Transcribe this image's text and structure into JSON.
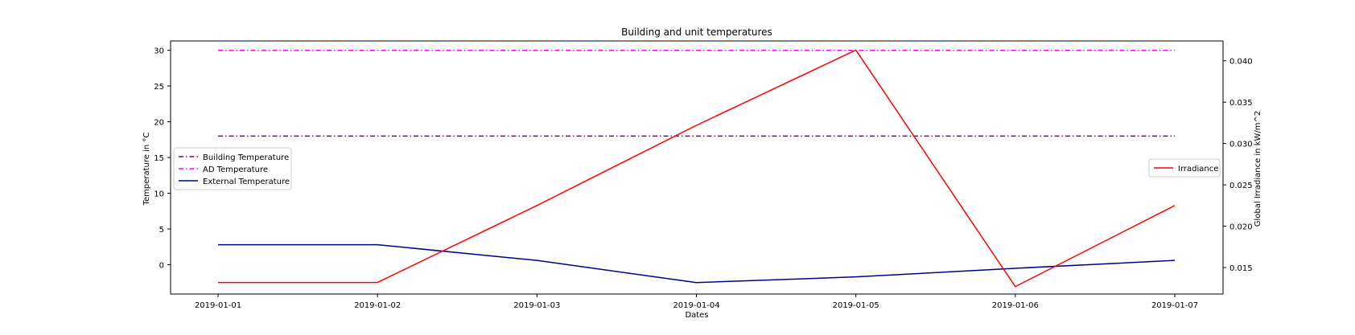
{
  "chart_data": {
    "type": "line",
    "title": "Building and unit temperatures",
    "xlabel": "Dates",
    "ylabel": "Temperature in °C",
    "ylabel_right": "Global Irradiance in kW/m^2",
    "x": [
      "2019-01-01",
      "2019-01-02",
      "2019-01-03",
      "2019-01-04",
      "2019-01-05",
      "2019-01-06",
      "2019-01-07"
    ],
    "xlim": [
      "2019-01-01",
      "2019-01-07"
    ],
    "ylim": [
      -4.1,
      31.3
    ],
    "ylim_right": [
      0.0118,
      0.0424
    ],
    "yticks": [
      0,
      5,
      10,
      15,
      20,
      25,
      30
    ],
    "yticks_right": [
      0.015,
      0.02,
      0.025,
      0.03,
      0.035,
      0.04
    ],
    "yticks_right_labels": [
      "0.015",
      "0.020",
      "0.025",
      "0.030",
      "0.035",
      "0.040"
    ],
    "series": [
      {
        "name": "Building Temperature",
        "axis": "left",
        "color": "#800080",
        "dash": "dashdot",
        "values": [
          18,
          18,
          18,
          18,
          18,
          18,
          18
        ]
      },
      {
        "name": "AD Temperature",
        "axis": "left",
        "color": "#ff00ff",
        "dash": "dashdot",
        "values": [
          30,
          30,
          30,
          30,
          30,
          30,
          30
        ]
      },
      {
        "name": "External Temperature",
        "axis": "left",
        "color": "#00008b",
        "dash": "solid",
        "values": [
          2.8,
          2.8,
          0.6,
          -2.5,
          -1.7,
          -0.5,
          0.6
        ]
      },
      {
        "name": "Irradiance",
        "axis": "right",
        "color": "#ff0000",
        "dash": "solid",
        "values": [
          0.0132,
          0.0132,
          0.0225,
          0.0322,
          0.0413,
          0.0127,
          0.0225
        ]
      }
    ],
    "legend_left": [
      "Building Temperature",
      "AD Temperature",
      "External Temperature"
    ],
    "legend_left_placement": "center-left",
    "legend_right": [
      "Irradiance"
    ],
    "legend_right_placement": "center-right",
    "grid": false
  }
}
